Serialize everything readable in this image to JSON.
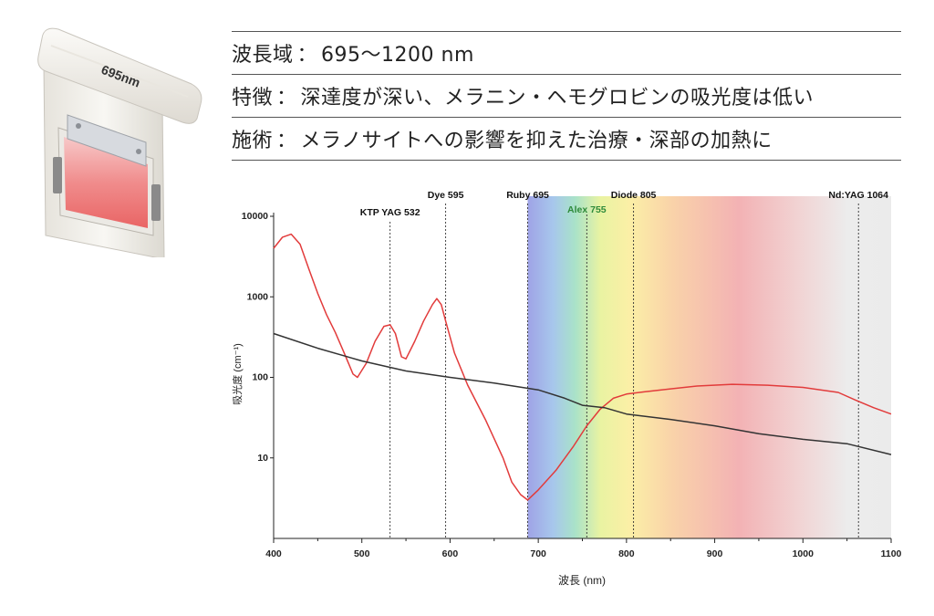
{
  "product": {
    "label": "695nm"
  },
  "info": [
    {
      "key": "波長域",
      "sep": "：",
      "value": "695〜1200 nm"
    },
    {
      "key": "特徴",
      "sep": "：",
      "value": "深達度が深い、メラニン・ヘモグロビンの吸光度は低い"
    },
    {
      "key": "施術",
      "sep": "：",
      "value": "メラノサイトへの影響を抑えた治療・深部の加熱に"
    }
  ],
  "chart_data": {
    "type": "line",
    "xlabel": "波長 (nm)",
    "ylabel": "吸光度 (cm⁻¹)",
    "xlim": [
      400,
      1100
    ],
    "ylim": [
      1,
      10000
    ],
    "yscale": "log",
    "x_ticks": [
      "400",
      "500",
      "600",
      "700",
      "800",
      "900",
      "1000",
      "1100"
    ],
    "y_ticks": [
      "10000",
      "1000",
      "100",
      "10"
    ],
    "highlight_band": {
      "from": 688,
      "to": 1100,
      "description": "spectrum gradient 695–1200 nm"
    },
    "lasers": [
      {
        "label": "KTP YAG 532",
        "x": 532
      },
      {
        "label": "Dye 595",
        "x": 595
      },
      {
        "label": "Ruby 695",
        "x": 688
      },
      {
        "label": "Alex 755",
        "x": 755
      },
      {
        "label": "Diode 805",
        "x": 808
      },
      {
        "label": "Nd:YAG 1064",
        "x": 1063
      }
    ],
    "series": [
      {
        "color": "#e23b3b",
        "points": [
          [
            400,
            4000
          ],
          [
            410,
            5500
          ],
          [
            420,
            6000
          ],
          [
            430,
            4500
          ],
          [
            440,
            2200
          ],
          [
            450,
            1100
          ],
          [
            460,
            600
          ],
          [
            470,
            360
          ],
          [
            480,
            200
          ],
          [
            490,
            110
          ],
          [
            495,
            100
          ],
          [
            505,
            150
          ],
          [
            515,
            280
          ],
          [
            525,
            430
          ],
          [
            532,
            450
          ],
          [
            538,
            350
          ],
          [
            545,
            180
          ],
          [
            550,
            170
          ],
          [
            560,
            280
          ],
          [
            570,
            500
          ],
          [
            580,
            800
          ],
          [
            585,
            950
          ],
          [
            590,
            800
          ],
          [
            595,
            500
          ],
          [
            605,
            200
          ],
          [
            620,
            80
          ],
          [
            640,
            30
          ],
          [
            660,
            10
          ],
          [
            670,
            5
          ],
          [
            680,
            3.5
          ],
          [
            688,
            3
          ],
          [
            700,
            4
          ],
          [
            720,
            7
          ],
          [
            740,
            14
          ],
          [
            755,
            25
          ],
          [
            770,
            40
          ],
          [
            785,
            55
          ],
          [
            800,
            62
          ],
          [
            820,
            66
          ],
          [
            850,
            72
          ],
          [
            880,
            78
          ],
          [
            920,
            82
          ],
          [
            960,
            80
          ],
          [
            1000,
            75
          ],
          [
            1040,
            65
          ],
          [
            1060,
            52
          ],
          [
            1080,
            42
          ],
          [
            1100,
            35
          ]
        ]
      },
      {
        "color": "#333333",
        "points": [
          [
            400,
            350
          ],
          [
            450,
            230
          ],
          [
            500,
            160
          ],
          [
            550,
            120
          ],
          [
            600,
            100
          ],
          [
            650,
            85
          ],
          [
            700,
            70
          ],
          [
            730,
            55
          ],
          [
            750,
            45
          ],
          [
            775,
            42
          ],
          [
            800,
            35
          ],
          [
            850,
            30
          ],
          [
            900,
            25
          ],
          [
            950,
            20
          ],
          [
            1000,
            17
          ],
          [
            1050,
            15
          ],
          [
            1100,
            11
          ]
        ]
      }
    ]
  }
}
